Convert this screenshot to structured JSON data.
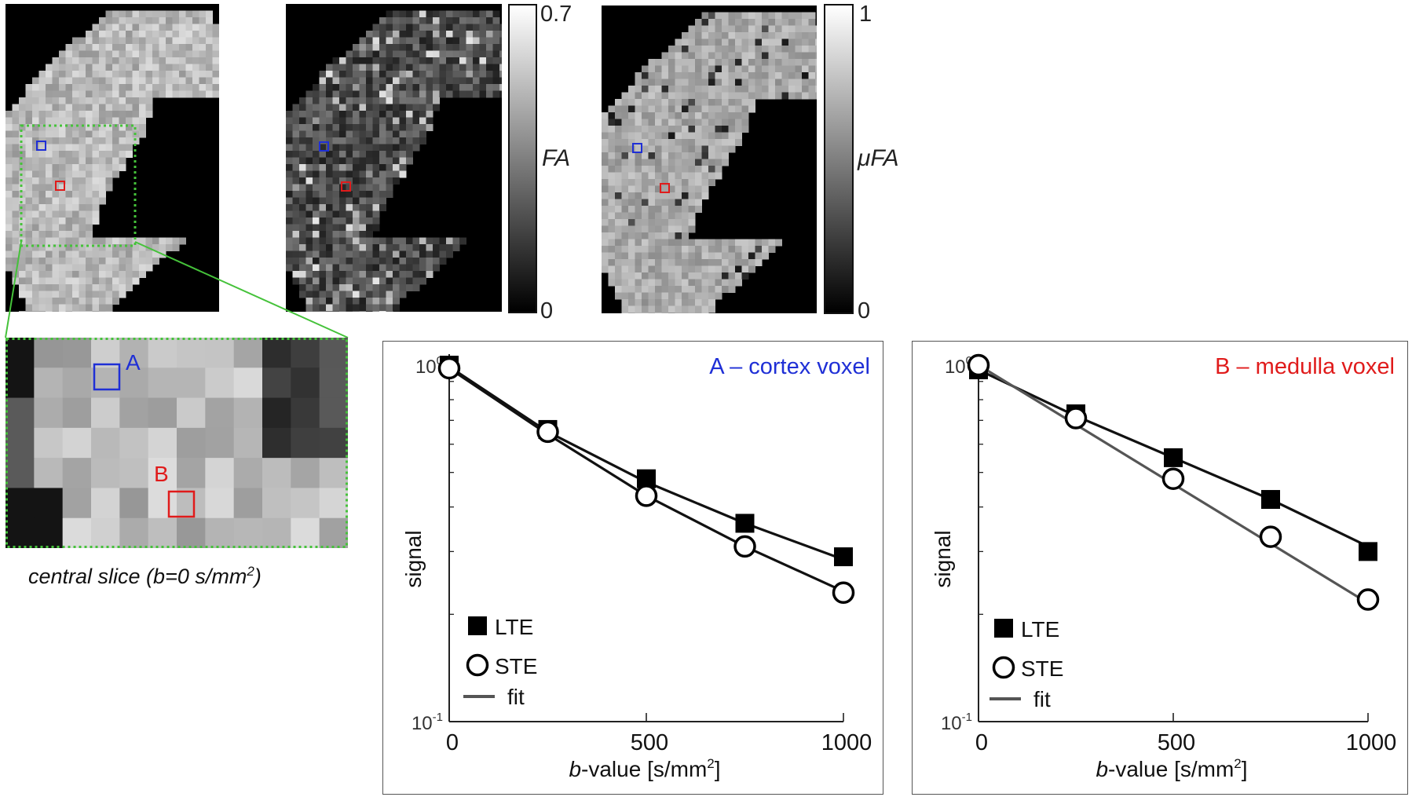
{
  "maps": [
    {
      "id": "b0",
      "colorbar": null
    },
    {
      "id": "fa",
      "colorbar": {
        "max_label": "0.7",
        "min_label": "0",
        "title": "FA"
      }
    },
    {
      "id": "ufa",
      "colorbar": {
        "max_label": "1",
        "min_label": "0",
        "title": "μFA"
      }
    }
  ],
  "zoom": {
    "caption_text": "central slice (b=0 s/mm",
    "caption_sup": "2",
    "caption_close": ")",
    "roi_a_label": "A",
    "roi_b_label": "B"
  },
  "colors": {
    "roi_a": "#1f2fd6",
    "roi_b": "#e01b1b",
    "zoom_box": "#45c23a",
    "fit_line": "#555555"
  },
  "chart_data": [
    {
      "type": "scatter",
      "title": "A – cortex voxel",
      "title_color": "#1f2fd6",
      "xlabel_italic": "b",
      "xlabel_rest": "-value [s/mm",
      "xlabel_sup": "2",
      "xlabel_close": "]",
      "ylabel": "signal",
      "xlim": [
        0,
        1000
      ],
      "ylim": [
        0.1,
        1
      ],
      "yscale": "log",
      "x_ticks": [
        "0",
        "500",
        "1000"
      ],
      "y_ticks": [
        {
          "base": "10",
          "exp": "0"
        },
        {
          "base": "10",
          "exp": "-1"
        }
      ],
      "legend": [
        "LTE",
        "STE",
        "fit"
      ],
      "legend_placement": "bottom-left",
      "series": [
        {
          "name": "LTE",
          "marker": "filled-square",
          "x": [
            0,
            250,
            500,
            750,
            1000
          ],
          "y": [
            1.0,
            0.66,
            0.48,
            0.36,
            0.29
          ]
        },
        {
          "name": "STE",
          "marker": "open-circle",
          "x": [
            0,
            250,
            500,
            750,
            1000
          ],
          "y": [
            0.98,
            0.65,
            0.43,
            0.31,
            0.23
          ]
        }
      ],
      "fits": [
        {
          "x": [
            0,
            250,
            500,
            750,
            1000
          ],
          "y": [
            0.99,
            0.65,
            0.47,
            0.36,
            0.285
          ],
          "color": "#111111"
        },
        {
          "x": [
            0,
            250,
            500,
            750,
            1000
          ],
          "y": [
            0.98,
            0.64,
            0.43,
            0.31,
            0.232
          ],
          "color": "#111111"
        }
      ]
    },
    {
      "type": "scatter",
      "title": "B – medulla voxel",
      "title_color": "#e01b1b",
      "xlabel_italic": "b",
      "xlabel_rest": "-value [s/mm",
      "xlabel_sup": "2",
      "xlabel_close": "]",
      "ylabel": "signal",
      "xlim": [
        0,
        1000
      ],
      "ylim": [
        0.1,
        1
      ],
      "yscale": "log",
      "x_ticks": [
        "0",
        "500",
        "1000"
      ],
      "y_ticks": [
        {
          "base": "10",
          "exp": "0"
        },
        {
          "base": "10",
          "exp": "-1"
        }
      ],
      "legend": [
        "LTE",
        "STE",
        "fit"
      ],
      "legend_placement": "bottom-left",
      "series": [
        {
          "name": "LTE",
          "marker": "filled-square",
          "x": [
            0,
            250,
            500,
            750,
            1000
          ],
          "y": [
            0.97,
            0.73,
            0.55,
            0.42,
            0.3
          ]
        },
        {
          "name": "STE",
          "marker": "open-circle",
          "x": [
            0,
            250,
            500,
            750,
            1000
          ],
          "y": [
            1.0,
            0.71,
            0.48,
            0.33,
            0.22
          ]
        }
      ],
      "fits": [
        {
          "x": [
            0,
            250,
            500,
            750,
            1000
          ],
          "y": [
            0.97,
            0.72,
            0.55,
            0.42,
            0.31
          ],
          "color": "#111111"
        },
        {
          "x": [
            0,
            1000
          ],
          "y": [
            1.0,
            0.215
          ],
          "color": "#555555"
        }
      ]
    }
  ]
}
